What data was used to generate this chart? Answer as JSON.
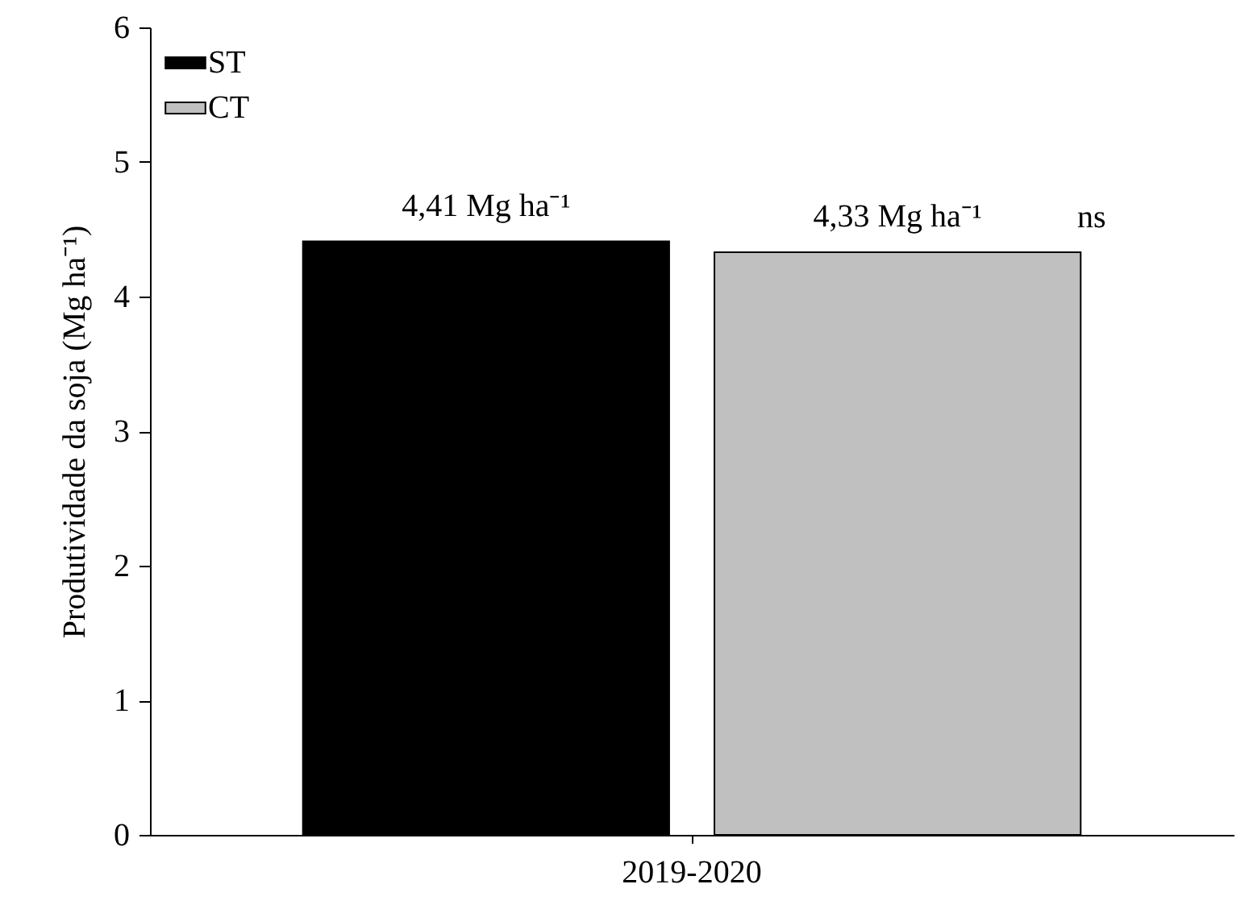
{
  "chart_data": {
    "type": "bar",
    "ylabel": "Produtividade da soja (Mg ha⁻¹)",
    "categories": [
      "2019-2020"
    ],
    "series": [
      {
        "name": "ST",
        "color": "#000000",
        "values": [
          4.41
        ],
        "value_labels": [
          "4,41 Mg ha⁻¹"
        ]
      },
      {
        "name": "CT",
        "color": "#c0c0c0",
        "values": [
          4.33
        ],
        "value_labels": [
          "4,33 Mg ha⁻¹"
        ]
      }
    ],
    "annotations": [
      "ns"
    ],
    "ylim": [
      0,
      6
    ],
    "yticks": [
      0,
      1,
      2,
      3,
      4,
      5,
      6
    ],
    "grid": false,
    "legend": "top left"
  }
}
